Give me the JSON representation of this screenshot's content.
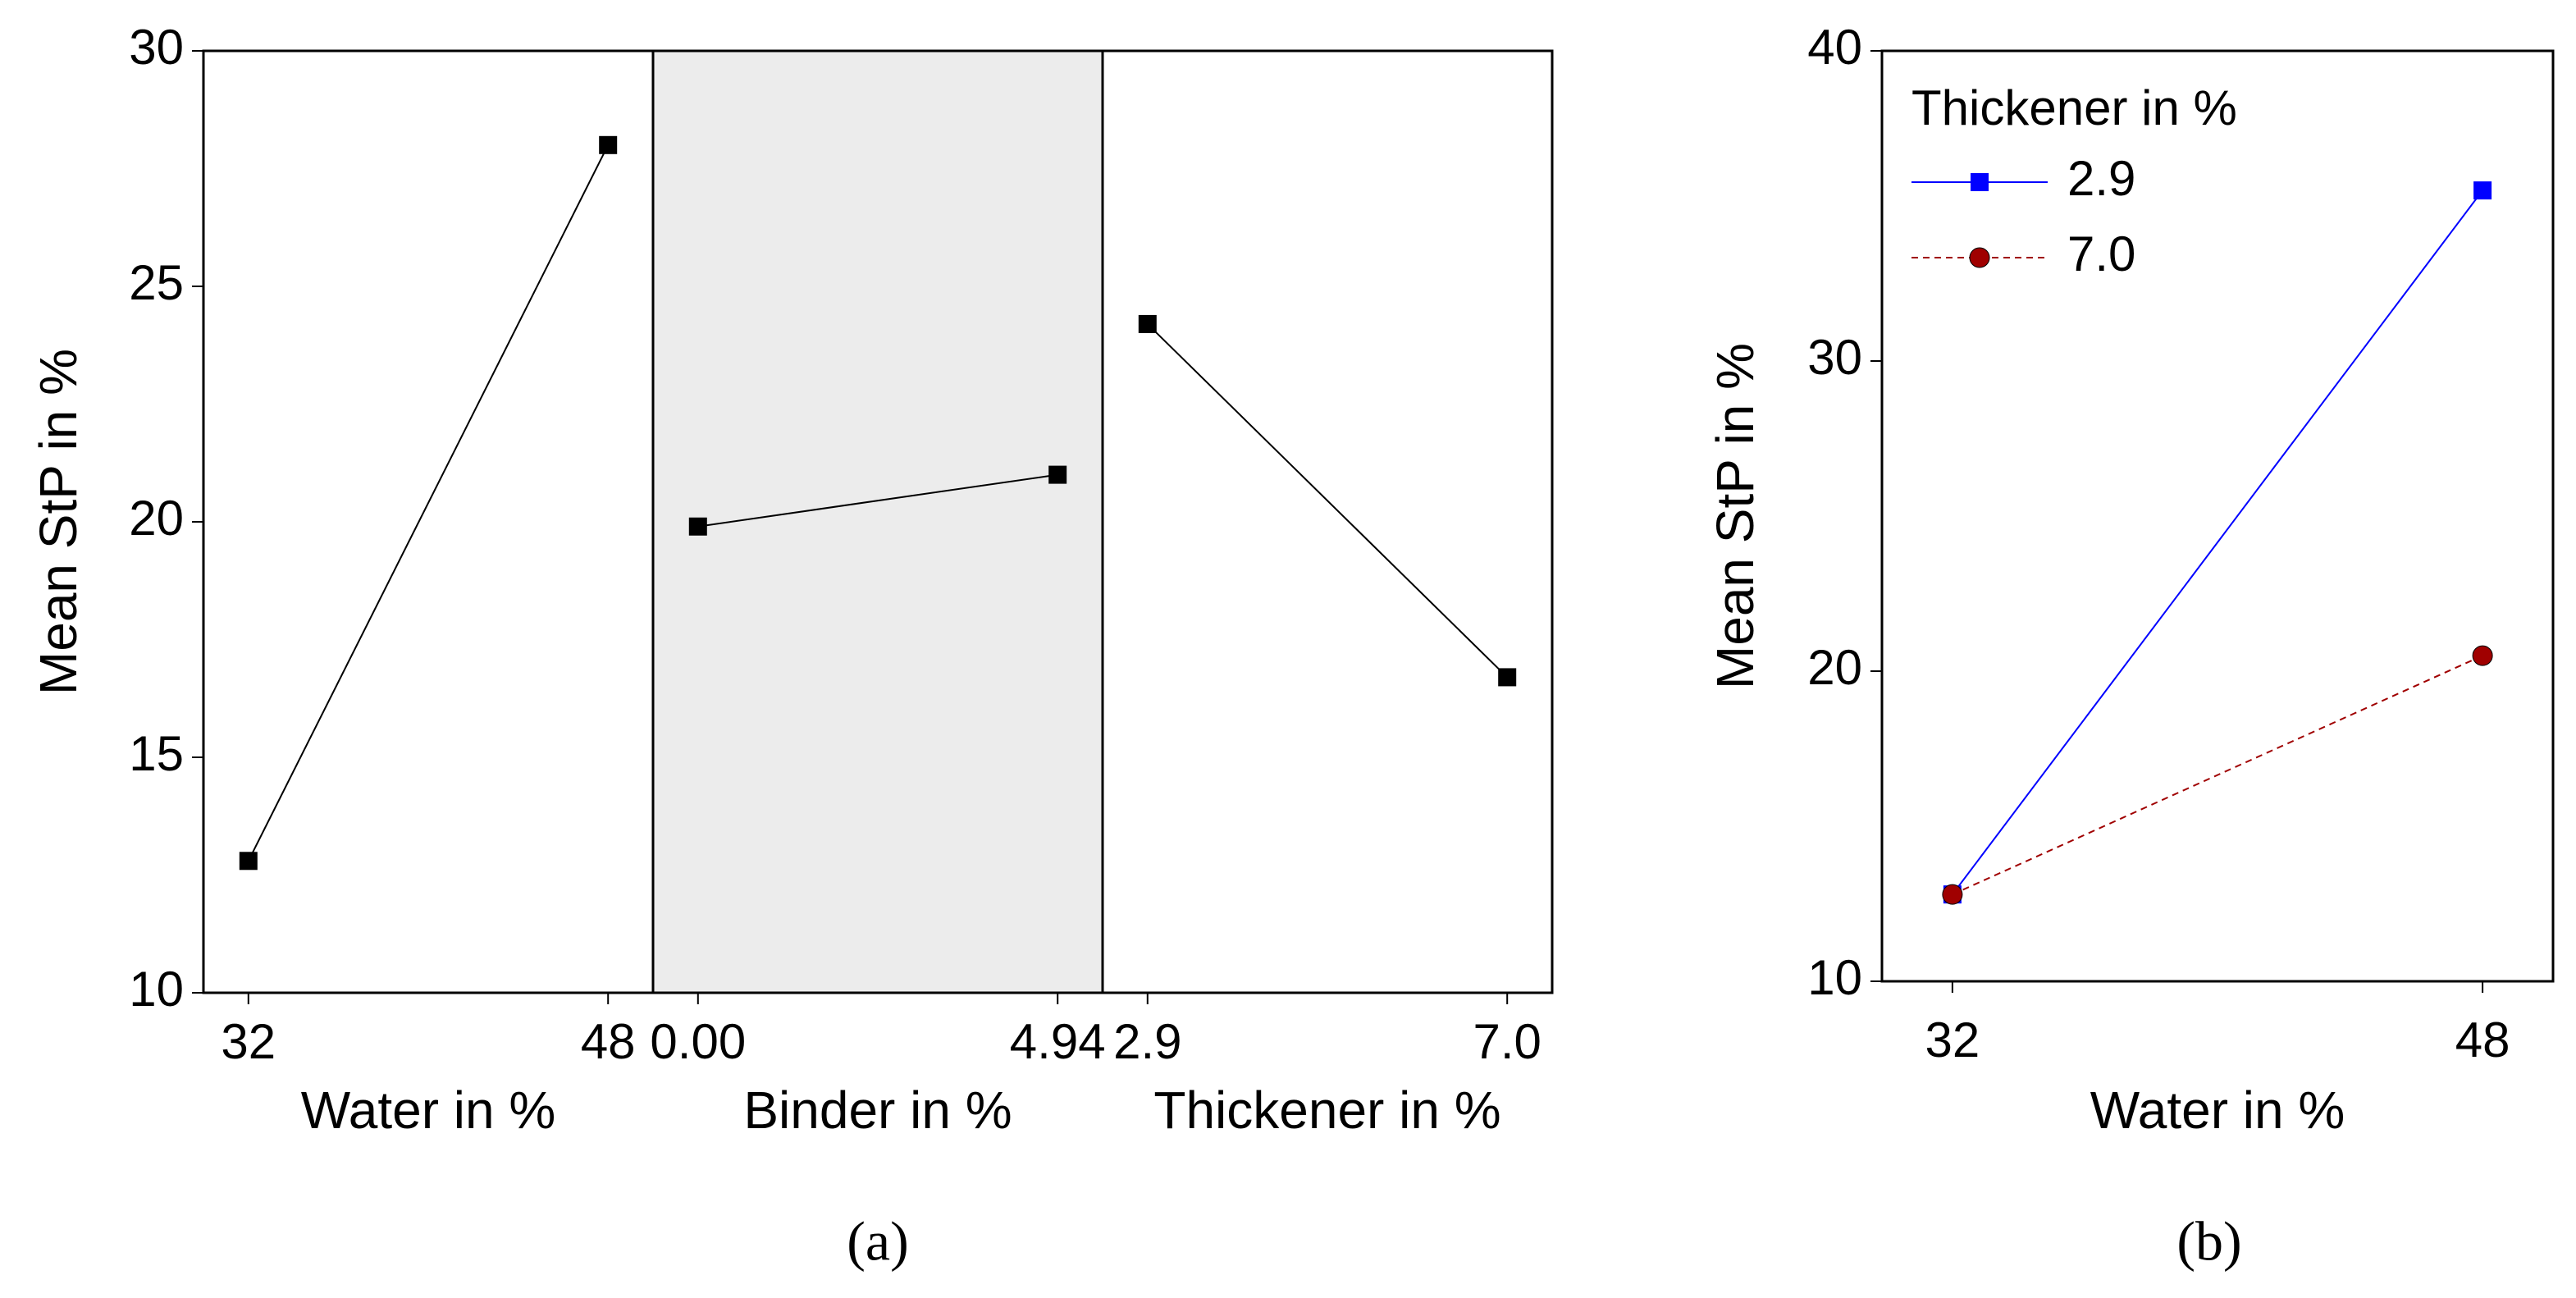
{
  "chart_data": [
    {
      "type": "main-effects",
      "caption": "(a)",
      "ylabel": "Mean StP in %",
      "ylim": [
        10,
        30
      ],
      "yticks": [
        10,
        15,
        20,
        25,
        30
      ],
      "color": "#000000",
      "marker": "square",
      "panels": [
        {
          "xlabel": "Water in %",
          "categories": [
            "32",
            "48"
          ],
          "values": [
            12.8,
            28.0
          ]
        },
        {
          "xlabel": "Binder in %",
          "categories": [
            "0.00",
            "4.94"
          ],
          "values": [
            19.9,
            21.0
          ],
          "background": "#ececec"
        },
        {
          "xlabel": "Thickener in %",
          "categories": [
            "2.9",
            "7.0"
          ],
          "values": [
            24.2,
            16.7
          ]
        }
      ]
    },
    {
      "type": "line",
      "caption": "(b)",
      "ylabel": "Mean StP in %",
      "xlabel": "Water in %",
      "categories": [
        "32",
        "48"
      ],
      "ylim": [
        10,
        40
      ],
      "yticks": [
        10,
        20,
        30,
        40
      ],
      "legend_title": "Thickener in %",
      "legend": "upper left",
      "series": [
        {
          "name": "2.9",
          "color": "#0000ff",
          "marker": "square",
          "dash": "solid",
          "values": [
            12.8,
            35.5
          ]
        },
        {
          "name": "7.0",
          "color": "#a00000",
          "marker": "circle",
          "dash": "dashed",
          "values": [
            12.8,
            20.5
          ]
        }
      ]
    }
  ]
}
